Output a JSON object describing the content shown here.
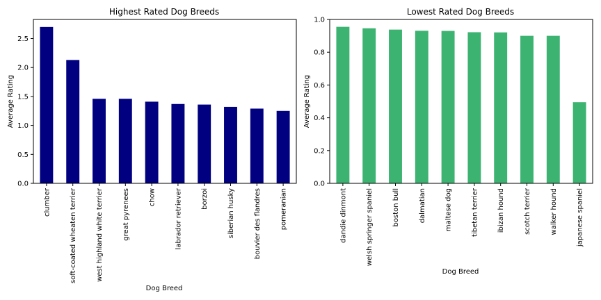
{
  "chart_data": [
    {
      "type": "bar",
      "title": "Highest Rated Dog Breeds",
      "xlabel": "Dog Breed",
      "ylabel": "Average Rating",
      "categories": [
        "clumber",
        "soft-coated wheaten terrier",
        "west highland white terrier",
        "great pyrenees",
        "chow",
        "labrador retriever",
        "borzoi",
        "siberian husky",
        "bouvier des flandres",
        "pomeranian"
      ],
      "values": [
        2.7,
        2.13,
        1.46,
        1.46,
        1.41,
        1.37,
        1.36,
        1.32,
        1.29,
        1.25
      ],
      "ylim": [
        0,
        2.83
      ],
      "yticks": [
        "0.0",
        "0.5",
        "1.0",
        "1.5",
        "2.0",
        "2.5"
      ],
      "color": "#000080",
      "grid": false
    },
    {
      "type": "bar",
      "title": "Lowest Rated Dog Breeds",
      "xlabel": "Dog Breed",
      "ylabel": "Average Rating",
      "categories": [
        "dandie dinmont",
        "welsh springer spaniel",
        "boston bull",
        "dalmatian",
        "maltese dog",
        "tibetan terrier",
        "ibizan hound",
        "scotch terrier",
        "walker hound",
        "japanese spaniel"
      ],
      "values": [
        0.955,
        0.946,
        0.938,
        0.931,
        0.93,
        0.922,
        0.921,
        0.9,
        0.9,
        0.495
      ],
      "ylim": [
        0,
        1.0
      ],
      "yticks": [
        "0.0",
        "0.2",
        "0.4",
        "0.6",
        "0.8",
        "1.0"
      ],
      "color": "#3CB371",
      "grid": false
    }
  ]
}
